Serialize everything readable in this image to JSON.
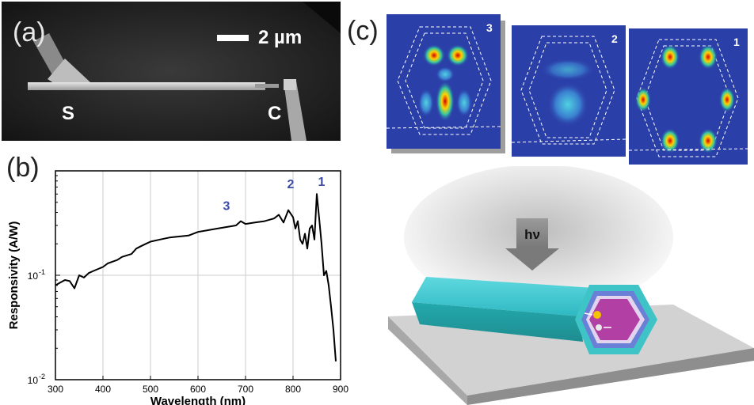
{
  "panels": {
    "a": {
      "label": "(a)",
      "scale_bar": "2 µm",
      "source_label": "S",
      "contact_label": "C"
    },
    "b": {
      "label": "(b)"
    },
    "c": {
      "label": "(c)",
      "mode_numbers": [
        "3",
        "2",
        "1"
      ],
      "light_label": "hν"
    }
  },
  "chart_data": {
    "type": "line",
    "xlabel": "Wavelength (nm)",
    "ylabel": "Responsivity (A/W)",
    "xlim": [
      300,
      900
    ],
    "ylim": [
      0.01,
      1.0
    ],
    "yscale": "log",
    "xticks": [
      300,
      400,
      500,
      600,
      700,
      800,
      900
    ],
    "yticks": [
      {
        "value": 0.01,
        "base": "10",
        "exp": "-2"
      },
      {
        "value": 0.1,
        "base": "10",
        "exp": "-1"
      }
    ],
    "grid": true,
    "x": [
      300,
      310,
      320,
      330,
      340,
      350,
      360,
      370,
      380,
      390,
      400,
      410,
      420,
      430,
      440,
      450,
      460,
      470,
      480,
      490,
      500,
      520,
      540,
      560,
      580,
      600,
      620,
      640,
      660,
      680,
      690,
      700,
      720,
      740,
      760,
      770,
      780,
      790,
      800,
      805,
      810,
      815,
      820,
      825,
      830,
      835,
      840,
      845,
      850,
      855,
      860,
      865,
      870,
      875,
      880,
      885,
      890
    ],
    "y": [
      0.08,
      0.085,
      0.09,
      0.088,
      0.075,
      0.1,
      0.095,
      0.105,
      0.11,
      0.115,
      0.12,
      0.13,
      0.135,
      0.14,
      0.15,
      0.155,
      0.16,
      0.18,
      0.19,
      0.2,
      0.21,
      0.22,
      0.23,
      0.235,
      0.24,
      0.26,
      0.27,
      0.28,
      0.29,
      0.3,
      0.33,
      0.31,
      0.32,
      0.33,
      0.35,
      0.38,
      0.32,
      0.42,
      0.36,
      0.28,
      0.33,
      0.22,
      0.2,
      0.25,
      0.18,
      0.28,
      0.3,
      0.22,
      0.6,
      0.35,
      0.2,
      0.1,
      0.11,
      0.08,
      0.05,
      0.03,
      0.015
    ],
    "annotations": [
      {
        "text": "3",
        "x": 660,
        "y": 0.42
      },
      {
        "text": "2",
        "x": 795,
        "y": 0.68
      },
      {
        "text": "1",
        "x": 860,
        "y": 0.72
      }
    ],
    "annotation_color": "#3b4da8",
    "line_color": "#000000",
    "grid_color": "#cccccc"
  }
}
